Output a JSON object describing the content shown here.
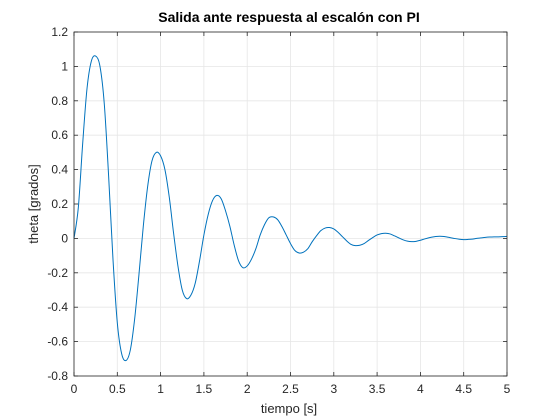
{
  "chart_data": {
    "type": "line",
    "title": "Salida ante respuesta al escalón con PI",
    "xlabel": "tiempo [s]",
    "ylabel": "theta [grados]",
    "xlim": [
      0,
      5
    ],
    "ylim": [
      -0.8,
      1.2
    ],
    "xticks": [
      0,
      0.5,
      1,
      1.5,
      2,
      2.5,
      3,
      3.5,
      4,
      4.5,
      5
    ],
    "xtick_labels": [
      "0",
      "0.5",
      "1",
      "1.5",
      "2",
      "2.5",
      "3",
      "3.5",
      "4",
      "4.5",
      "5"
    ],
    "yticks": [
      -0.8,
      -0.6,
      -0.4,
      -0.2,
      0,
      0.2,
      0.4,
      0.6,
      0.8,
      1,
      1.2
    ],
    "ytick_labels": [
      "-0.8",
      "-0.6",
      "-0.4",
      "-0.2",
      "0",
      "0.2",
      "0.4",
      "0.6",
      "0.8",
      "1",
      "1.2"
    ],
    "grid": true,
    "line_color": "#0072BD",
    "series": [
      {
        "x": [
          0,
          0.05,
          0.1,
          0.15,
          0.2,
          0.25,
          0.3,
          0.35,
          0.4,
          0.45,
          0.5,
          0.55,
          0.6,
          0.65,
          0.7,
          0.75,
          0.8,
          0.85,
          0.9,
          0.95,
          1,
          1.05,
          1.1,
          1.15,
          1.2,
          1.25,
          1.3,
          1.35,
          1.4,
          1.45,
          1.5,
          1.55,
          1.6,
          1.65,
          1.7,
          1.75,
          1.8,
          1.85,
          1.9,
          1.95,
          2,
          2.05,
          2.1,
          2.15,
          2.2,
          2.25,
          2.3,
          2.35,
          2.4,
          2.45,
          2.5,
          2.55,
          2.6,
          2.65,
          2.7,
          2.75,
          2.8,
          2.85,
          2.9,
          2.95,
          3,
          3.05,
          3.1,
          3.15,
          3.2,
          3.25,
          3.3,
          3.35,
          3.4,
          3.45,
          3.5,
          3.55,
          3.6,
          3.65,
          3.7,
          3.75,
          3.8,
          3.85,
          3.9,
          3.95,
          4,
          4.05,
          4.1,
          4.15,
          4.2,
          4.25,
          4.3,
          4.35,
          4.4,
          4.45,
          4.5,
          4.55,
          4.6,
          4.65,
          4.7,
          4.75,
          4.8,
          4.85,
          4.9,
          4.95,
          5
        ],
        "y": [
          0,
          0.18,
          0.55,
          0.87,
          1.03,
          1.06,
          1.0,
          0.78,
          0.36,
          -0.12,
          -0.49,
          -0.67,
          -0.71,
          -0.65,
          -0.47,
          -0.21,
          0.07,
          0.3,
          0.45,
          0.5,
          0.48,
          0.4,
          0.24,
          0.03,
          -0.16,
          -0.3,
          -0.35,
          -0.33,
          -0.26,
          -0.13,
          0.02,
          0.14,
          0.22,
          0.25,
          0.23,
          0.16,
          0.07,
          -0.04,
          -0.13,
          -0.17,
          -0.16,
          -0.12,
          -0.06,
          0.02,
          0.08,
          0.12,
          0.125,
          0.11,
          0.07,
          0.02,
          -0.03,
          -0.07,
          -0.085,
          -0.08,
          -0.06,
          -0.02,
          0.015,
          0.045,
          0.06,
          0.063,
          0.055,
          0.035,
          0.01,
          -0.015,
          -0.035,
          -0.042,
          -0.04,
          -0.03,
          -0.012,
          0.005,
          0.02,
          0.028,
          0.03,
          0.026,
          0.015,
          0.003,
          -0.008,
          -0.016,
          -0.019,
          -0.017,
          -0.011,
          -0.003,
          0.004,
          0.009,
          0.012,
          0.012,
          0.009,
          0.004,
          -0.001,
          -0.005,
          -0.007,
          -0.006,
          -0.004,
          0.0,
          0.003,
          0.006,
          0.008,
          0.009,
          0.009,
          0.01,
          0.012
        ]
      }
    ]
  }
}
